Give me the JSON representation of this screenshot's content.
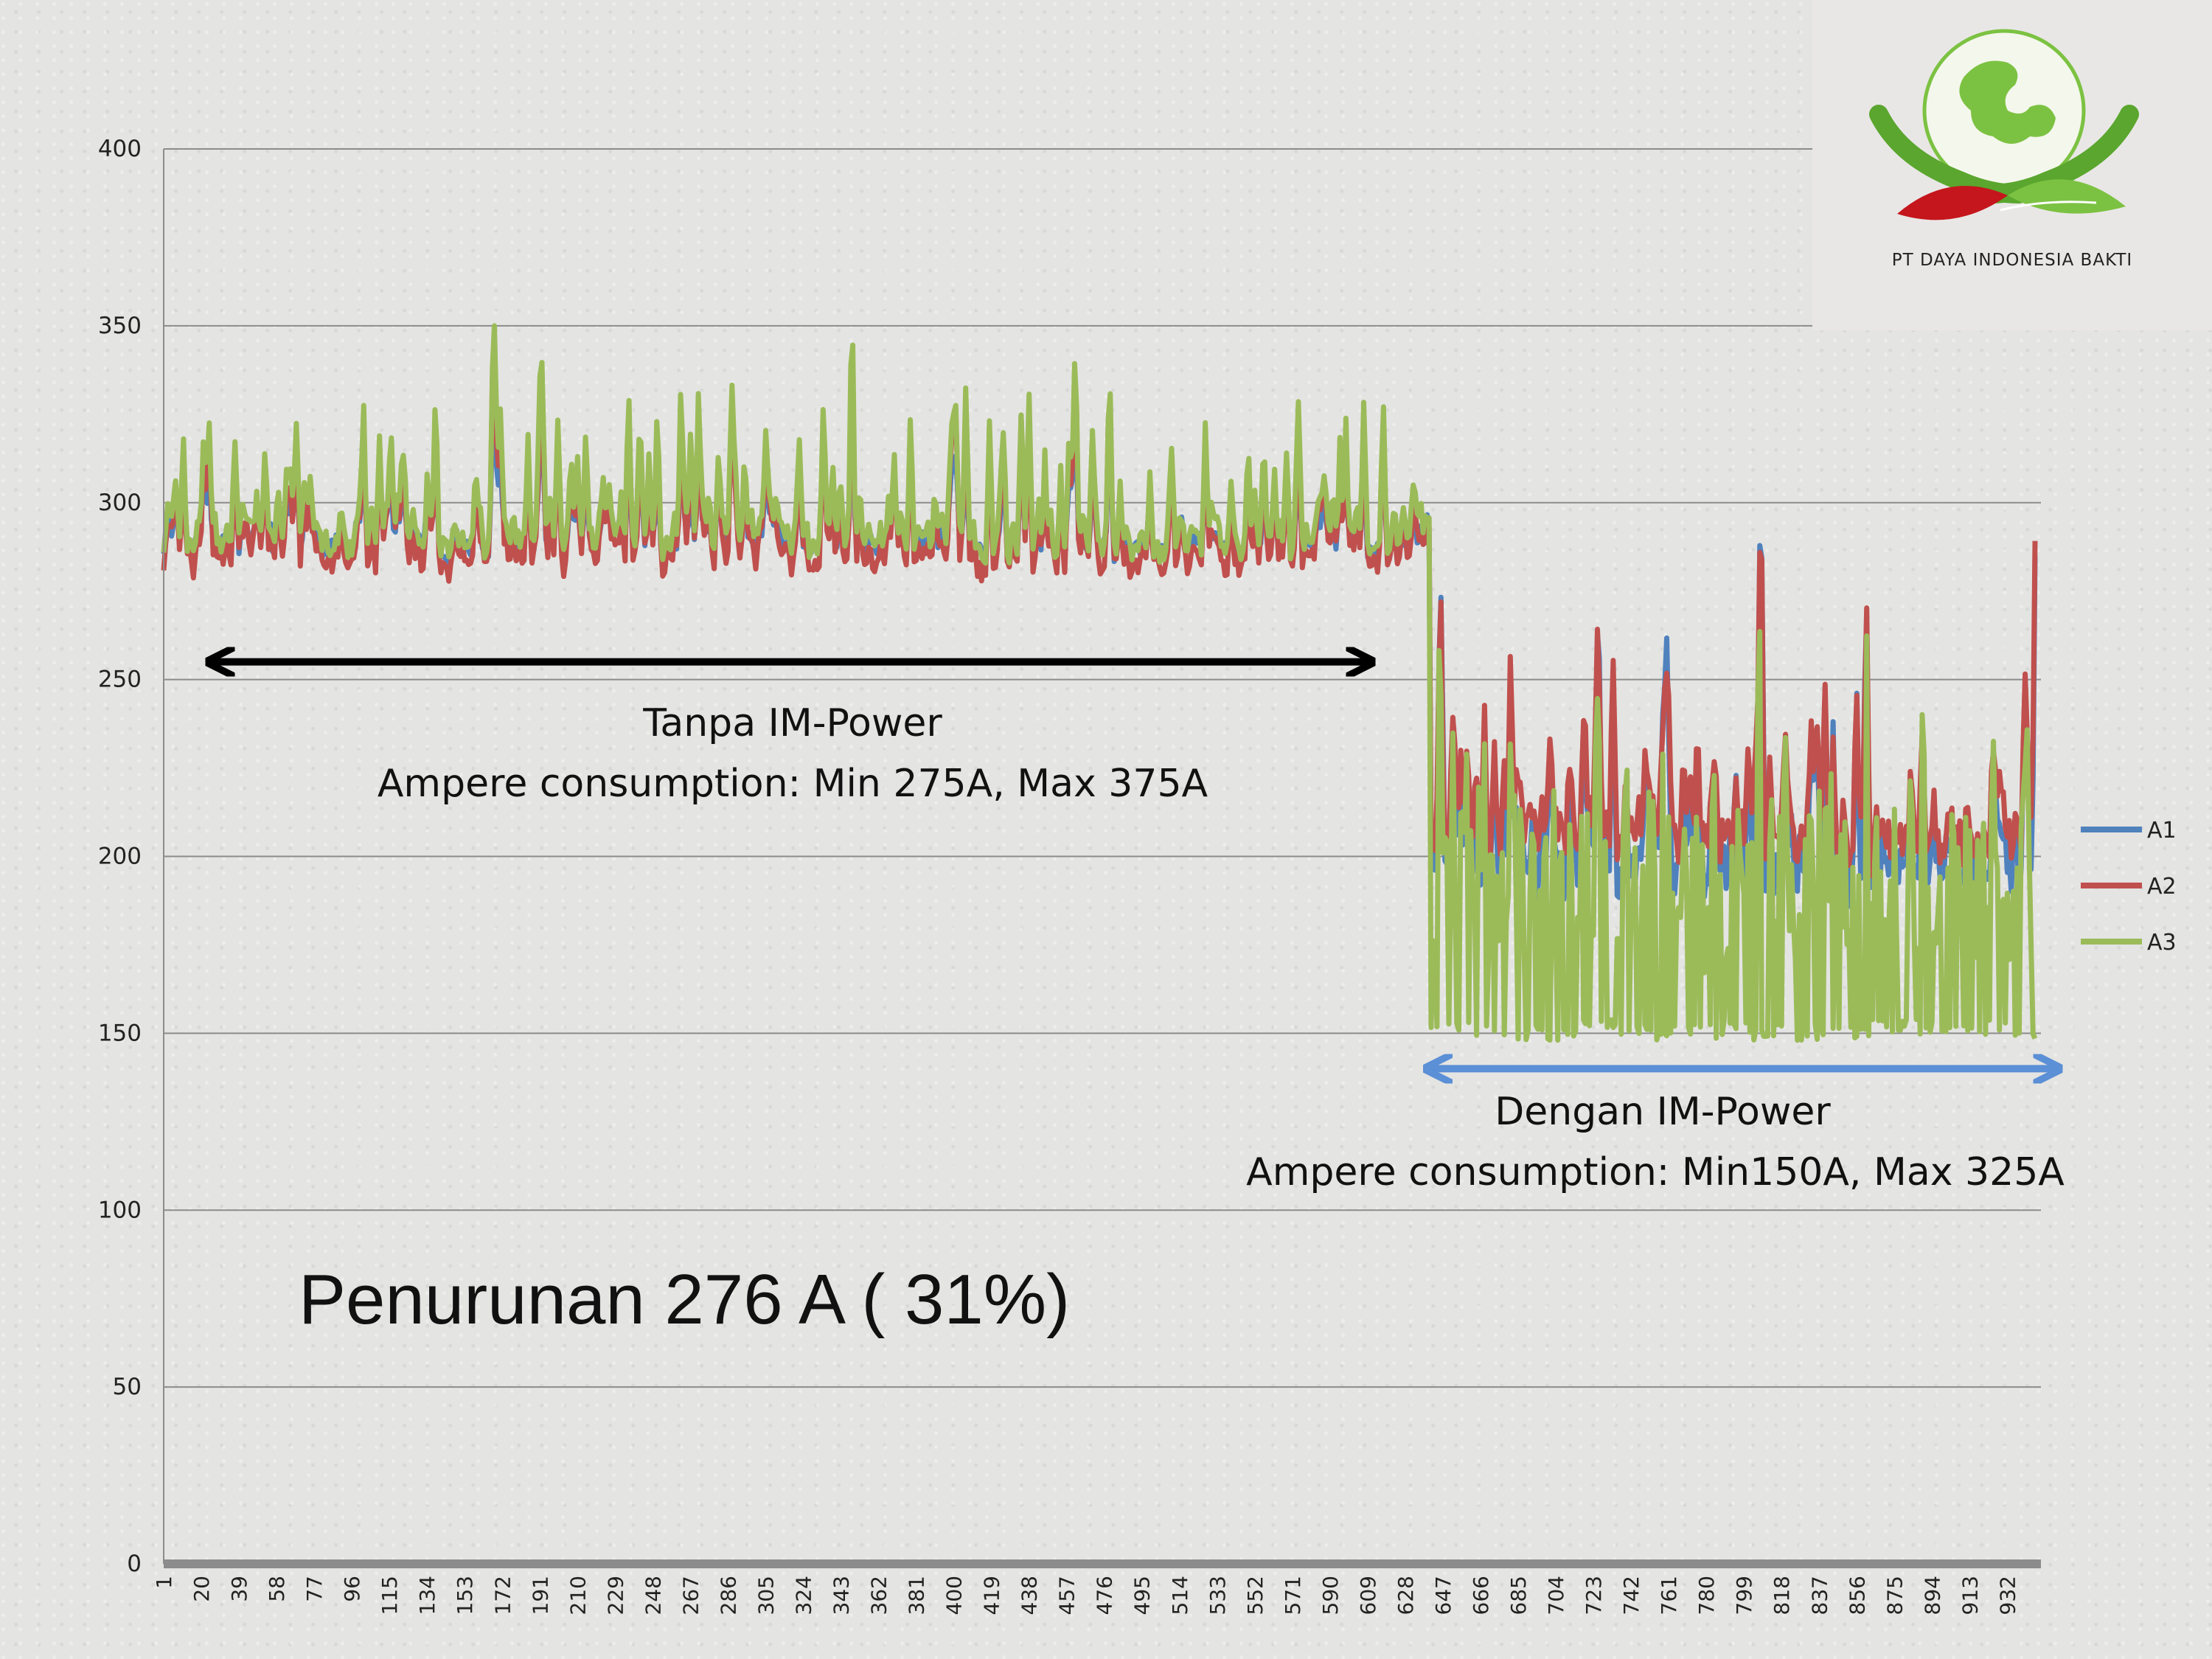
{
  "colors": {
    "A1": "#4f81bd",
    "A2": "#c0504d",
    "A3": "#9bbb59",
    "arrow_before": "#000000",
    "arrow_after": "#5b8fd6"
  },
  "logo": {
    "text": "PT DAYA INDONESIA BAKTI",
    "icon": "globe-hands-leaves-icon"
  },
  "chart_data": {
    "type": "line",
    "title": "",
    "xlabel": "",
    "ylabel": "",
    "ylim": [
      0,
      400
    ],
    "y_ticks": [
      0,
      50,
      100,
      150,
      200,
      250,
      300,
      350,
      400
    ],
    "x_range": [
      1,
      946
    ],
    "x_tick_labels": [
      "1",
      "20",
      "39",
      "58",
      "77",
      "96",
      "115",
      "134",
      "153",
      "172",
      "191",
      "210",
      "229",
      "248",
      "267",
      "286",
      "305",
      "324",
      "343",
      "362",
      "381",
      "400",
      "419",
      "438",
      "457",
      "476",
      "495",
      "514",
      "533",
      "552",
      "571",
      "590",
      "609",
      "628",
      "647",
      "666",
      "685",
      "704",
      "723",
      "742",
      "761",
      "780",
      "799",
      "818",
      "837",
      "856",
      "875",
      "894",
      "913",
      "932"
    ],
    "grid": "horizontal",
    "legend": "right",
    "series": [
      {
        "name": "A1",
        "color": "#4f81bd",
        "segments": [
          {
            "x_range": [
              1,
              640
            ],
            "min": 275,
            "baseline": 285,
            "max": 348
          },
          {
            "x_range": [
              640,
              946
            ],
            "min": 150,
            "baseline": 190,
            "max": 327
          }
        ]
      },
      {
        "name": "A2",
        "color": "#c0504d",
        "segments": [
          {
            "x_range": [
              1,
              640
            ],
            "min": 268,
            "baseline": 280,
            "max": 375
          },
          {
            "x_range": [
              640,
              946
            ],
            "min": 150,
            "baseline": 200,
            "max": 320
          }
        ]
      },
      {
        "name": "A3",
        "color": "#9bbb59",
        "segments": [
          {
            "x_range": [
              1,
              640
            ],
            "min": 270,
            "baseline": 285,
            "max": 380
          },
          {
            "x_range": [
              640,
              946
            ],
            "min": 148,
            "baseline": 175,
            "max": 298
          }
        ]
      }
    ],
    "annotations": {
      "before_title": "Tanpa IM-Power",
      "before_detail": "Ampere consumption: Min 275A, Max 375A",
      "after_title": "Dengan IM-Power",
      "after_detail": "Ampere consumption: Min150A, Max 325A",
      "reduction": "Penurunan 276 A ( 31%)",
      "before_x": [
        25,
        610
      ],
      "after_x": [
        640,
        957
      ],
      "arrow_y": 255,
      "arrow_after_y": 140
    }
  }
}
